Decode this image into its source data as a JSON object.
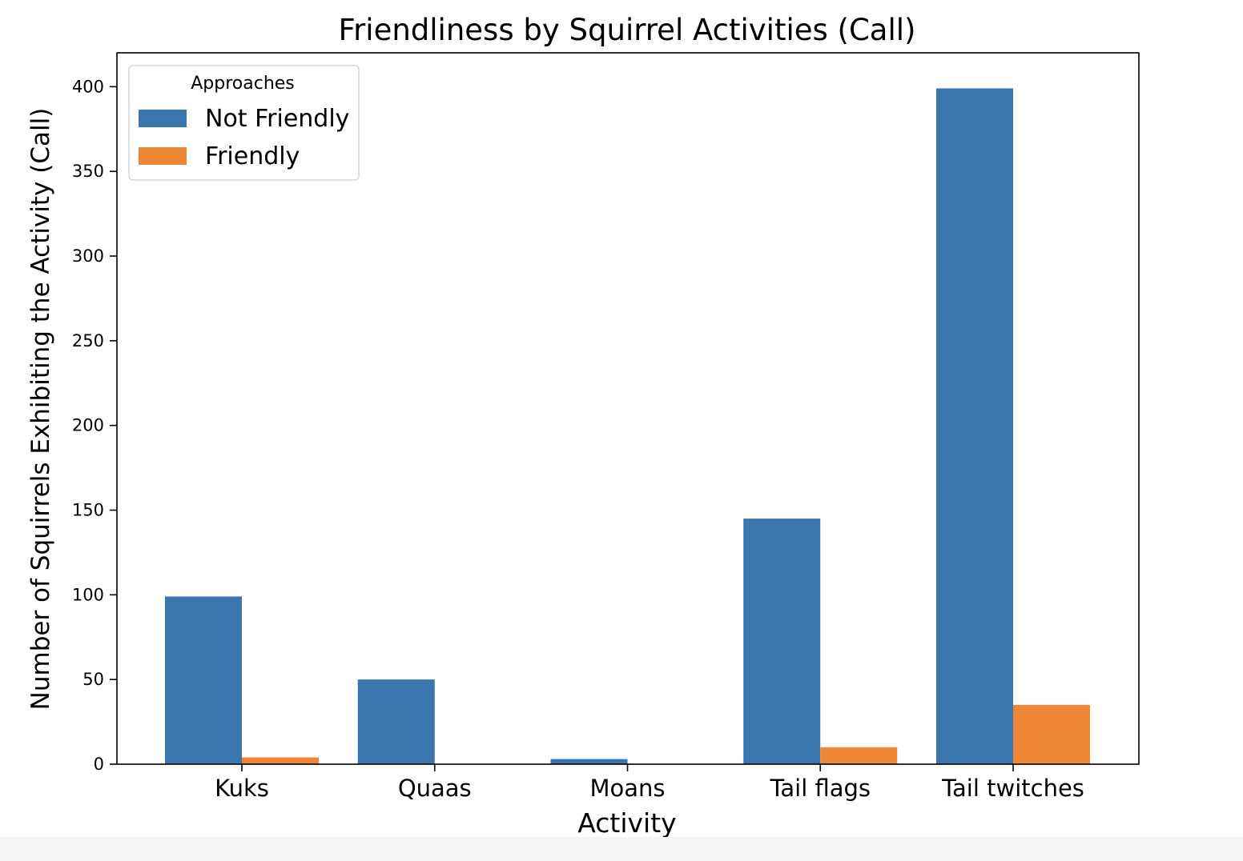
{
  "chart_data": {
    "type": "bar",
    "title": "Friendliness by Squirrel Activities (Call)",
    "xlabel": "Activity",
    "ylabel": "Number of Squirrels Exhibiting the Activity (Call)",
    "categories": [
      "Kuks",
      "Quaas",
      "Moans",
      "Tail flags",
      "Tail twitches"
    ],
    "series": [
      {
        "name": "Not Friendly",
        "color": "#3a75af",
        "values": [
          99,
          50,
          3,
          145,
          399
        ]
      },
      {
        "name": "Friendly",
        "color": "#ef8636",
        "values": [
          4,
          0,
          0,
          10,
          35
        ]
      }
    ],
    "ylim": [
      0,
      420
    ],
    "yticks": [
      0,
      50,
      100,
      150,
      200,
      250,
      300,
      350,
      400
    ],
    "legend": {
      "title": "Approaches",
      "placement": "top-left"
    },
    "grid": false
  }
}
